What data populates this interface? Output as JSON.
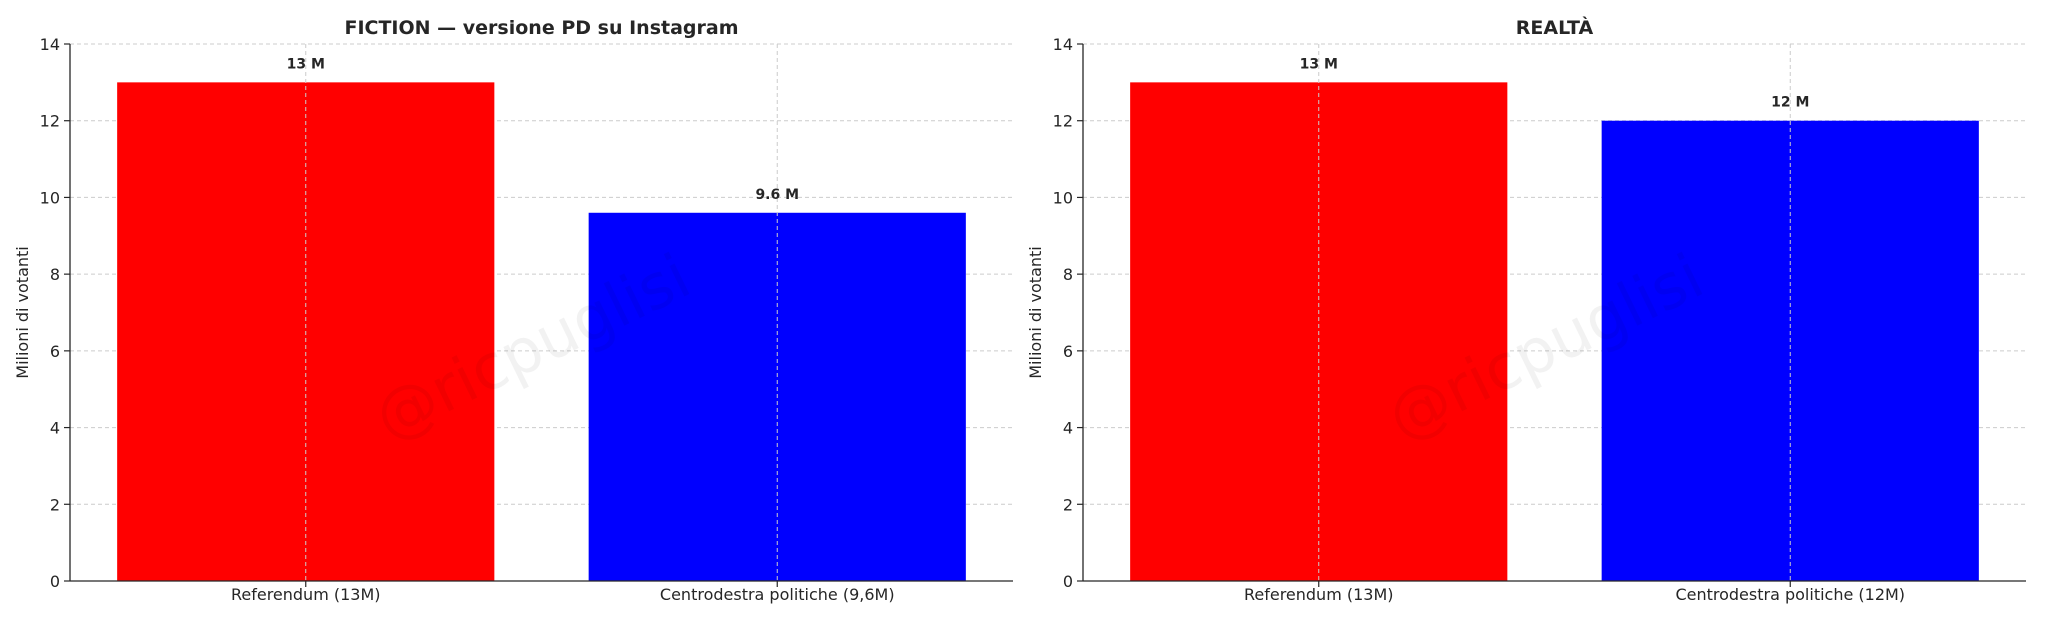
{
  "watermark": "@ricpuglisi",
  "colors": {
    "red": "#ff0000",
    "blue": "#0000ff",
    "grid": "#cccccc",
    "axis": "#262626"
  },
  "chart_data": [
    {
      "type": "bar",
      "title": "FICTION — versione PD su Instagram",
      "ylabel": "Milioni di votanti",
      "xlabel": "",
      "categories": [
        "Referendum (13M)",
        "Centrodestra politiche (9,6M)"
      ],
      "values": [
        13,
        9.6
      ],
      "value_labels": [
        "13 M",
        "9.6 M"
      ],
      "bar_colors": [
        "#ff0000",
        "#0000ff"
      ],
      "ylim": [
        0,
        14
      ],
      "yticks": [
        0,
        2,
        4,
        6,
        8,
        10,
        12,
        14
      ],
      "grid": true
    },
    {
      "type": "bar",
      "title": "REALTÀ",
      "ylabel": "Milioni di votanti",
      "xlabel": "",
      "categories": [
        "Referendum (13M)",
        "Centrodestra politiche (12M)"
      ],
      "values": [
        13,
        12
      ],
      "value_labels": [
        "13 M",
        "12 M"
      ],
      "bar_colors": [
        "#ff0000",
        "#0000ff"
      ],
      "ylim": [
        0,
        14
      ],
      "yticks": [
        0,
        2,
        4,
        6,
        8,
        10,
        12,
        14
      ],
      "grid": true
    }
  ]
}
